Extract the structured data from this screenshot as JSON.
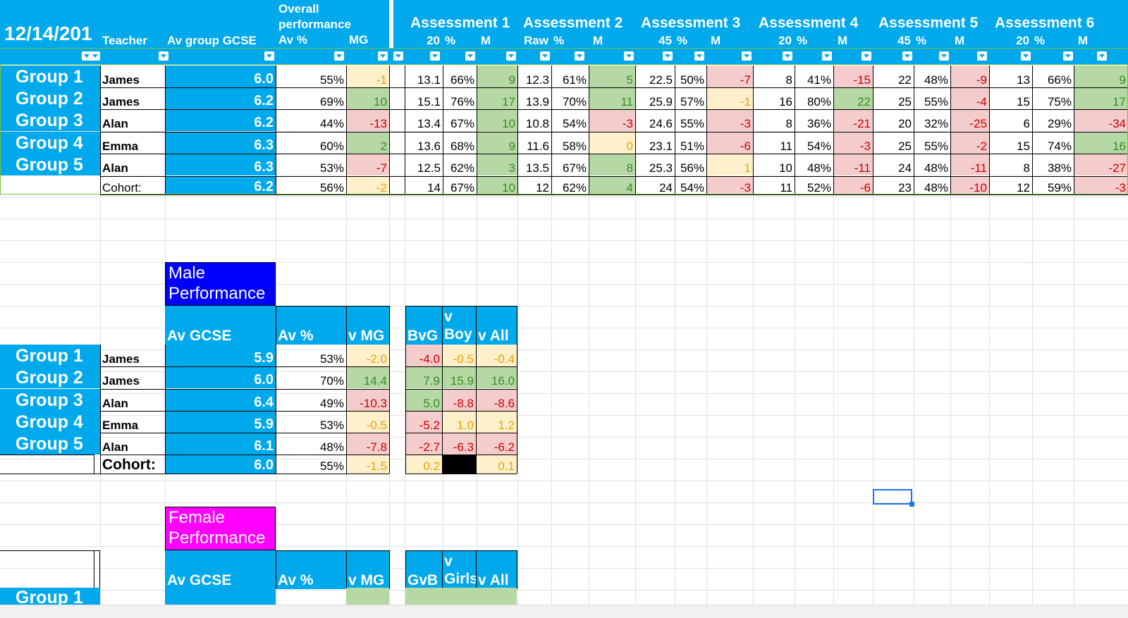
{
  "top_table": {
    "date": "12/14/201",
    "headers": {
      "teacher": "Teacher",
      "av_group_gcse": "Av group GCSE",
      "overall_line1": "Overall",
      "overall_line2": "performance",
      "av_pct": "Av %",
      "mg": "MG"
    },
    "assessments": [
      {
        "name": "Assessment 1",
        "raw": "20",
        "pct": "%",
        "m": "M"
      },
      {
        "name": "Assessment 2",
        "raw": "Raw",
        "pct": "%",
        "m": "M"
      },
      {
        "name": "Assessment 3",
        "raw": "45",
        "pct": "%",
        "m": "M"
      },
      {
        "name": "Assessment 4",
        "raw": "20",
        "pct": "%",
        "m": "M"
      },
      {
        "name": "Assessment 5",
        "raw": "45",
        "pct": "%",
        "m": "M"
      },
      {
        "name": "Assessment 6",
        "raw": "20",
        "pct": "%",
        "m": "M"
      }
    ],
    "rows": [
      {
        "group": "Group 1",
        "teacher": "James",
        "gcse": "6.0",
        "av": "55%",
        "mg": "-1",
        "mgc": "fy",
        "a": [
          [
            "13.1",
            "66%",
            "9",
            "fg"
          ],
          [
            "12.3",
            "61%",
            "5",
            "fg"
          ],
          [
            "22.5",
            "50%",
            "-7",
            "fr"
          ],
          [
            "8",
            "41%",
            "-15",
            "fr"
          ],
          [
            "22",
            "48%",
            "-9",
            "fr"
          ],
          [
            "13",
            "66%",
            "9",
            "fg"
          ]
        ]
      },
      {
        "group": "Group 2",
        "teacher": "James",
        "gcse": "6.2",
        "av": "69%",
        "mg": "10",
        "mgc": "fg",
        "a": [
          [
            "15.1",
            "76%",
            "17",
            "fg"
          ],
          [
            "13.9",
            "70%",
            "11",
            "fg"
          ],
          [
            "25.9",
            "57%",
            "-1",
            "fy"
          ],
          [
            "16",
            "80%",
            "22",
            "fg"
          ],
          [
            "25",
            "55%",
            "-4",
            "fr"
          ],
          [
            "15",
            "75%",
            "17",
            "fg"
          ]
        ]
      },
      {
        "group": "Group 3",
        "teacher": "Alan",
        "gcse": "6.2",
        "av": "44%",
        "mg": "-13",
        "mgc": "fr",
        "a": [
          [
            "13.4",
            "67%",
            "10",
            "fg"
          ],
          [
            "10.8",
            "54%",
            "-3",
            "fr"
          ],
          [
            "24.6",
            "55%",
            "-3",
            "fr"
          ],
          [
            "8",
            "36%",
            "-21",
            "fr"
          ],
          [
            "20",
            "32%",
            "-25",
            "fr"
          ],
          [
            "6",
            "29%",
            "-34",
            "fr"
          ]
        ]
      },
      {
        "group": "Group 4",
        "teacher": "Emma",
        "gcse": "6.3",
        "av": "60%",
        "mg": "2",
        "mgc": "fg",
        "a": [
          [
            "13.6",
            "68%",
            "9",
            "fg"
          ],
          [
            "11.6",
            "58%",
            "0",
            "fy"
          ],
          [
            "23.1",
            "51%",
            "-6",
            "fr"
          ],
          [
            "11",
            "54%",
            "-3",
            "fr"
          ],
          [
            "25",
            "55%",
            "-2",
            "fr"
          ],
          [
            "15",
            "74%",
            "16",
            "fg"
          ]
        ]
      },
      {
        "group": "Group 5",
        "teacher": "Alan",
        "gcse": "6.3",
        "av": "53%",
        "mg": "-7",
        "mgc": "fr",
        "a": [
          [
            "12.5",
            "62%",
            "3",
            "fg"
          ],
          [
            "13.5",
            "67%",
            "8",
            "fg"
          ],
          [
            "25.3",
            "56%",
            "1",
            "fy"
          ],
          [
            "10",
            "48%",
            "-11",
            "fr"
          ],
          [
            "24",
            "48%",
            "-11",
            "fr"
          ],
          [
            "8",
            "38%",
            "-27",
            "fr"
          ]
        ]
      },
      {
        "group": "",
        "teacher": "Cohort:",
        "gcse": "6.2",
        "av": "56%",
        "mg": "-2",
        "mgc": "fy",
        "a": [
          [
            "14",
            "67%",
            "10",
            "fg"
          ],
          [
            "12",
            "62%",
            "4",
            "fg"
          ],
          [
            "24",
            "54%",
            "-3",
            "fr"
          ],
          [
            "11",
            "52%",
            "-6",
            "fr"
          ],
          [
            "23",
            "48%",
            "-10",
            "fr"
          ],
          [
            "12",
            "59%",
            "-3",
            "fr"
          ]
        ]
      }
    ]
  },
  "male": {
    "title_line1": "Male",
    "title_line2": "Performance",
    "title_color": "#0000ff",
    "headers": {
      "av_gcse": "Av GCSE",
      "av_pct": "Av %",
      "v_mg": "v MG",
      "bvg": "BvG",
      "v_line1": "v",
      "v_line2": "Boy",
      "v_all": "v All"
    },
    "rows": [
      {
        "group": "Group 1",
        "teacher": "James",
        "gcse": "5.9",
        "av": "53%",
        "vmg": [
          "-2.0",
          "fy"
        ],
        "bvg": [
          "-4.0",
          "fr"
        ],
        "vb": [
          "-0.5",
          "fy"
        ],
        "vall": [
          "-0.4",
          "fy"
        ]
      },
      {
        "group": "Group 2",
        "teacher": "James",
        "gcse": "6.0",
        "av": "70%",
        "vmg": [
          "14.4",
          "fg"
        ],
        "bvg": [
          "7.9",
          "fg"
        ],
        "vb": [
          "15.9",
          "fg"
        ],
        "vall": [
          "16.0",
          "fg"
        ]
      },
      {
        "group": "Group 3",
        "teacher": "Alan",
        "gcse": "6.4",
        "av": "49%",
        "vmg": [
          "-10.3",
          "fr"
        ],
        "bvg": [
          "5.0",
          "fg"
        ],
        "vb": [
          "-8.8",
          "fr"
        ],
        "vall": [
          "-8.6",
          "fr"
        ]
      },
      {
        "group": "Group 4",
        "teacher": "Emma",
        "gcse": "5.9",
        "av": "53%",
        "vmg": [
          "-0.5",
          "fy"
        ],
        "bvg": [
          "-5.2",
          "fr"
        ],
        "vb": [
          "1.0",
          "fy"
        ],
        "vall": [
          "1.2",
          "fy"
        ]
      },
      {
        "group": "Group 5",
        "teacher": "Alan",
        "gcse": "6.1",
        "av": "48%",
        "vmg": [
          "-7.8",
          "fr"
        ],
        "bvg": [
          "-2.7",
          "fr"
        ],
        "vb": [
          "-6.3",
          "fr"
        ],
        "vall": [
          "-6.2",
          "fr"
        ]
      },
      {
        "group": "",
        "teacher": "Cohort:",
        "gcse": "6.0",
        "av": "55%",
        "vmg": [
          "-1.5",
          "fy"
        ],
        "bvg": [
          "0.2",
          "fy"
        ],
        "vb": [
          "",
          "black"
        ],
        "vall": [
          "0.1",
          "fy"
        ]
      }
    ]
  },
  "female": {
    "title_line1": "Female",
    "title_line2": "Performance",
    "title_color": "#ff00ff",
    "headers": {
      "av_gcse": "Av GCSE",
      "av_pct": "Av %",
      "v_mg": "v MG",
      "gvb": "GvB",
      "v_line1": "v",
      "v_line2": "Girls",
      "v_all": "v All"
    },
    "partial_row_label": "Group 1"
  },
  "colors": {
    "header_blue": "#00a8ec",
    "good_fill": "#b5d8a5",
    "neutral_fill": "#fdf0cb",
    "bad_fill": "#f4cccc"
  }
}
